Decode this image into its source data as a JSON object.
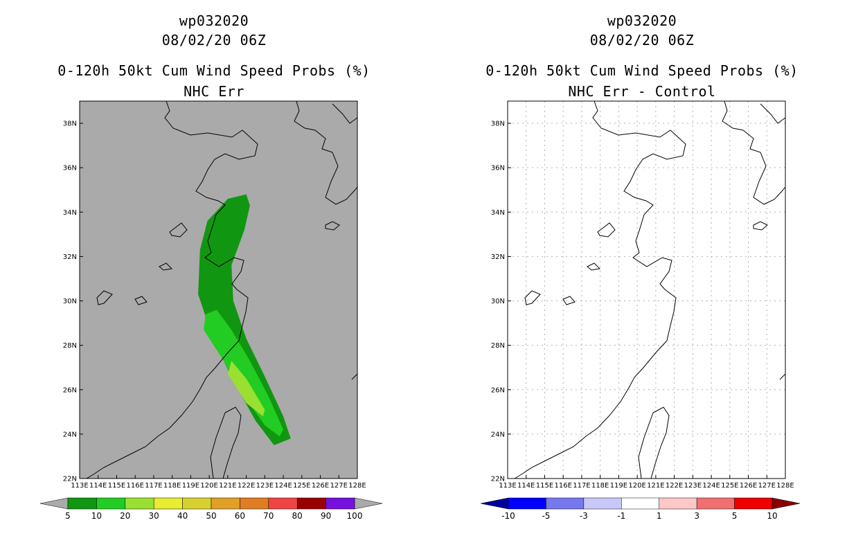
{
  "panels": [
    {
      "title_line1": "wp032020",
      "title_line2": "08/02/20 06Z",
      "title_line3": "0-120h 50kt Cum Wind Speed Probs (%)",
      "title_line4": "NHC Err",
      "background": "#aaaaaa",
      "colorbar": {
        "labels": [
          "5",
          "10",
          "20",
          "30",
          "40",
          "50",
          "60",
          "70",
          "80",
          "90",
          "100"
        ],
        "colors": [
          "#119611",
          "#22cc22",
          "#99e033",
          "#e8ec33",
          "#d8d030",
          "#e0a028",
          "#e07c22",
          "#ee4444",
          "#990000",
          "#7711dd"
        ],
        "end_color": "#aaaaaa"
      }
    },
    {
      "title_line1": "wp032020",
      "title_line2": "08/02/20 06Z",
      "title_line3": "0-120h 50kt Cum Wind Speed Probs (%)",
      "title_line4": "NHC Err - Control",
      "background": "#ffffff",
      "colorbar": {
        "labels": [
          "-10",
          "-5",
          "-3",
          "-1",
          "1",
          "3",
          "5",
          "10"
        ],
        "colors": [
          "#0000ff",
          "#7777ee",
          "#c8c8f8",
          "#ffffff",
          "#ffc8c8",
          "#f07070",
          "#ee0000"
        ],
        "end_left": "#000099",
        "end_right": "#880000"
      }
    }
  ],
  "map": {
    "lon_labels": [
      "113E",
      "114E",
      "115E",
      "116E",
      "117E",
      "118E",
      "119E",
      "120E",
      "121E",
      "122E",
      "123E",
      "124E",
      "125E",
      "126E",
      "127E",
      "128E"
    ],
    "lat_labels": [
      "22N",
      "24N",
      "26N",
      "28N",
      "30N",
      "32N",
      "34N",
      "36N",
      "38N"
    ],
    "lon_min": 113,
    "lon_max": 128,
    "lat_min": 22,
    "lat_max": 39
  },
  "prob_contours": [
    {
      "level": "5",
      "color": "#119611",
      "points": [
        [
          121.0,
          34.6
        ],
        [
          122.0,
          34.8
        ],
        [
          122.2,
          34.3
        ],
        [
          121.9,
          33.2
        ],
        [
          121.2,
          31.6
        ],
        [
          121.3,
          30.0
        ],
        [
          122.0,
          28.3
        ],
        [
          123.0,
          26.6
        ],
        [
          124.0,
          24.8
        ],
        [
          124.4,
          23.8
        ],
        [
          123.5,
          23.5
        ],
        [
          122.5,
          24.6
        ],
        [
          121.3,
          26.4
        ],
        [
          120.2,
          28.3
        ],
        [
          119.4,
          30.3
        ],
        [
          119.5,
          32.3
        ],
        [
          119.9,
          33.6
        ]
      ]
    },
    {
      "level": "10",
      "color": "#22cc22",
      "points": [
        [
          120.4,
          29.6
        ],
        [
          121.2,
          28.7
        ],
        [
          122.2,
          27.3
        ],
        [
          123.2,
          25.7
        ],
        [
          124.0,
          24.2
        ],
        [
          123.8,
          23.9
        ],
        [
          123.0,
          24.4
        ],
        [
          121.9,
          25.7
        ],
        [
          120.7,
          27.4
        ],
        [
          119.7,
          28.7
        ],
        [
          119.8,
          29.4
        ]
      ]
    },
    {
      "level": "20",
      "color": "#99e033",
      "points": [
        [
          121.2,
          27.3
        ],
        [
          122.0,
          26.5
        ],
        [
          123.0,
          25.1
        ],
        [
          122.9,
          24.8
        ],
        [
          122.0,
          25.4
        ],
        [
          121.0,
          26.7
        ]
      ]
    }
  ]
}
